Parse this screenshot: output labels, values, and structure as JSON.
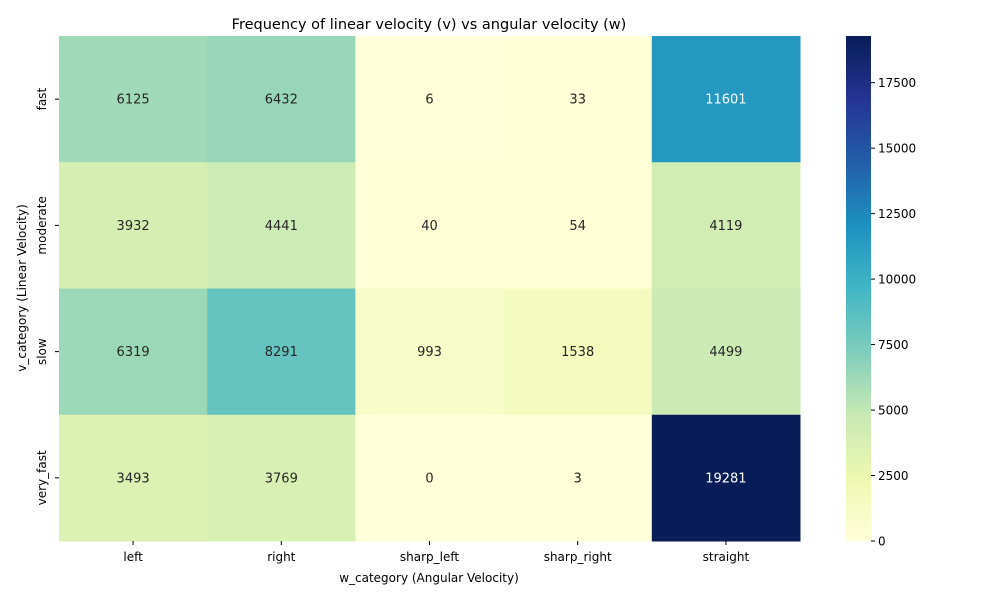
{
  "chart_data": {
    "type": "heatmap",
    "title": "Frequency of linear velocity (v) vs angular velocity (w)",
    "xlabel": "w_category (Angular Velocity)",
    "ylabel": "v_category (Linear Velocity)",
    "x_categories": [
      "left",
      "right",
      "sharp_left",
      "sharp_right",
      "straight"
    ],
    "y_categories": [
      "fast",
      "moderate",
      "slow",
      "very_fast"
    ],
    "values": [
      [
        6125,
        6432,
        6,
        33,
        11601
      ],
      [
        3932,
        4441,
        40,
        54,
        4119
      ],
      [
        6319,
        8291,
        993,
        1538,
        4499
      ],
      [
        3493,
        3769,
        0,
        3,
        19281
      ]
    ],
    "colorbar": {
      "min": 0,
      "max": 19281,
      "ticks": [
        0,
        2500,
        5000,
        7500,
        10000,
        12500,
        15000,
        17500
      ],
      "colormap": "YlGnBu",
      "stops": [
        "#ffffd9",
        "#edf8b1",
        "#c7e9b4",
        "#7fcdbb",
        "#41b6c4",
        "#1d91c0",
        "#225ea8",
        "#253494",
        "#081d58"
      ]
    }
  }
}
